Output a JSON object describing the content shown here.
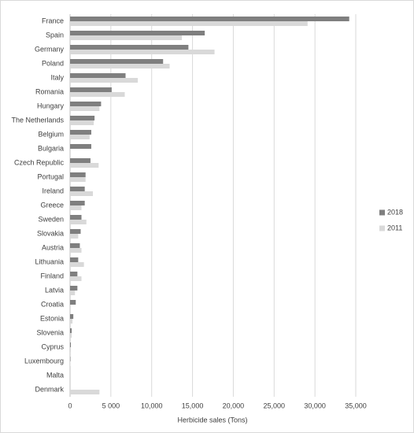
{
  "chart_data": {
    "type": "hbar",
    "x_label": "Herbicide sales (Tons)",
    "categories": [
      "France",
      "Spain",
      "Germany",
      "Poland",
      "Italy",
      "Romania",
      "Hungary",
      "The Netherlands",
      "Belgium",
      "Bulgaria",
      "Czech Republic",
      "Portugal",
      "Ireland",
      "Greece",
      "Sweden",
      "Slovakia",
      "Austria",
      "Lithuania",
      "Finland",
      "Latvia",
      "Croatia",
      "Estonia",
      "Slovenia",
      "Cyprus",
      "Luxembourg",
      "Malta",
      "Denmark"
    ],
    "series": [
      {
        "name": "2018",
        "color": "#7f7f7f",
        "values": [
          34200,
          16500,
          14500,
          11400,
          6800,
          5100,
          3800,
          3000,
          2600,
          2600,
          2500,
          1900,
          1800,
          1800,
          1400,
          1300,
          1200,
          1000,
          900,
          900,
          700,
          400,
          200,
          100,
          50,
          null,
          null
        ]
      },
      {
        "name": "2011",
        "color": "#d9d9d9",
        "values": [
          29100,
          13700,
          17700,
          12200,
          8300,
          6700,
          3600,
          2900,
          2400,
          null,
          3500,
          1900,
          2800,
          1400,
          2000,
          1000,
          1400,
          1700,
          1400,
          600,
          null,
          300,
          200,
          100,
          50,
          null,
          3600
        ]
      }
    ],
    "xlim": [
      0,
      35000
    ],
    "xticks": [
      0,
      {
        "value": 5000,
        "label": "5 000"
      },
      {
        "value": 10000,
        "label": "10,000"
      },
      {
        "value": 15000,
        "label": "15,000"
      },
      {
        "value": 20000,
        "label": "20,000"
      },
      {
        "value": 25000,
        "label": "25,000"
      },
      {
        "value": 30000,
        "label": "30,000"
      },
      {
        "value": 35000,
        "label": "35,000"
      }
    ],
    "grid": true,
    "legend": "right"
  }
}
